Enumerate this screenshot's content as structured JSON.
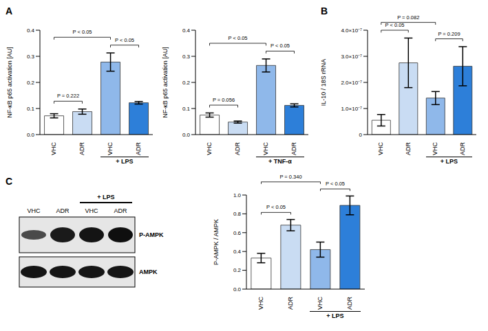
{
  "panel_labels": [
    "A",
    "B",
    "C"
  ],
  "chart_data": [
    {
      "type": "bar",
      "y_label": "NF-κB p65 activation [AU]",
      "categories": [
        "VHC",
        "ADR",
        "VHC",
        "ADR"
      ],
      "values": [
        0.072,
        0.088,
        0.278,
        0.122
      ],
      "errors": [
        0.008,
        0.01,
        0.035,
        0.005
      ],
      "colors": [
        "#ffffff",
        "#c9dcf3",
        "#8fb8ea",
        "#2d7fd9"
      ],
      "ylim": [
        0,
        0.4
      ],
      "yticks": [
        {
          "value": 0,
          "label": "0.0"
        },
        0.1,
        0.2,
        0.3,
        0.4
      ],
      "grid": false,
      "annotations": [
        {
          "text": "P = 0.222",
          "from": 0,
          "to": 1
        },
        {
          "text": "P < 0.05",
          "from": 2,
          "to": 3
        },
        {
          "text": "P < 0.05",
          "from": 0,
          "to": 2
        }
      ],
      "group_label": "+ LPS",
      "group_categories": [
        2,
        3
      ]
    },
    {
      "type": "bar",
      "y_label": "NF-κB p65 activation [AU]",
      "categories": [
        "VHC",
        "ADR",
        "VHC",
        "ADR"
      ],
      "values": [
        0.075,
        0.048,
        0.265,
        0.112
      ],
      "errors": [
        0.008,
        0.004,
        0.025,
        0.006
      ],
      "colors": [
        "#ffffff",
        "#c9dcf3",
        "#8fb8ea",
        "#2d7fd9"
      ],
      "ylim": [
        0,
        0.4
      ],
      "yticks": [
        {
          "value": 0,
          "label": "0.0"
        },
        0.1,
        0.2,
        0.3,
        0.4
      ],
      "grid": false,
      "annotations": [
        {
          "text": "P = 0.056",
          "from": 0,
          "to": 1
        },
        {
          "text": "P < 0.05",
          "from": 2,
          "to": 3
        },
        {
          "text": "P < 0.05",
          "from": 0,
          "to": 2
        }
      ],
      "group_label": "+ TNF-α",
      "group_categories": [
        2,
        3
      ]
    },
    {
      "type": "bar",
      "y_label": "IL-10 / 18S rRNA",
      "categories": [
        "VHC",
        "ADR",
        "VHC",
        "ADR"
      ],
      "values": [
        5.5e-08,
        2.75e-07,
        1.4e-07,
        2.62e-07
      ],
      "errors": [
        2.2e-08,
        9.5e-08,
        2.5e-08,
        7.5e-08
      ],
      "colors": [
        "#ffffff",
        "#c9dcf3",
        "#8fb8ea",
        "#2d7fd9"
      ],
      "ylim": [
        0,
        4e-07
      ],
      "yticks": [
        0,
        {
          "value": 1e-07,
          "label": "1.0×10⁻⁷"
        },
        {
          "value": 2e-07,
          "label": "2.0×10⁻⁷"
        },
        {
          "value": 3e-07,
          "label": "3.0×10⁻⁷"
        },
        {
          "value": 4e-07,
          "label": "4.0×10⁻⁷"
        }
      ],
      "grid": false,
      "annotations": [
        {
          "text": "P < 0.05",
          "from": 0,
          "to": 1
        },
        {
          "text": "P = 0.209",
          "from": 2,
          "to": 3
        },
        {
          "text": "P = 0.082",
          "from": 0,
          "to": 2
        }
      ],
      "group_label": "+ LPS",
      "group_categories": [
        2,
        3
      ]
    },
    {
      "type": "bar",
      "y_label": "P-AMPK / AMPK",
      "categories": [
        "VHC",
        "ADR",
        "VHC",
        "ADR"
      ],
      "values": [
        0.33,
        0.68,
        0.42,
        0.89
      ],
      "errors": [
        0.05,
        0.06,
        0.08,
        0.1
      ],
      "colors": [
        "#ffffff",
        "#c9dcf3",
        "#8fb8ea",
        "#2d7fd9"
      ],
      "ylim": [
        0,
        1.0
      ],
      "yticks": [
        {
          "value": 0,
          "label": "0.0"
        },
        0.2,
        0.4,
        0.6,
        0.8,
        {
          "value": 1.0,
          "label": "1.0"
        }
      ],
      "grid": false,
      "annotations": [
        {
          "text": "P < 0.05",
          "from": 0,
          "to": 1
        },
        {
          "text": "P < 0.05",
          "from": 2,
          "to": 3
        },
        {
          "text": "P = 0.340",
          "from": 0,
          "to": 2
        }
      ],
      "group_label": "+ LPS",
      "group_categories": [
        2,
        3
      ]
    }
  ],
  "blot": {
    "lanes": [
      "VHC",
      "ADR",
      "VHC",
      "ADR"
    ],
    "group_label": "+ LPS",
    "group_lanes": [
      2,
      3
    ],
    "rows": [
      "P-AMPK",
      "AMPK"
    ]
  }
}
